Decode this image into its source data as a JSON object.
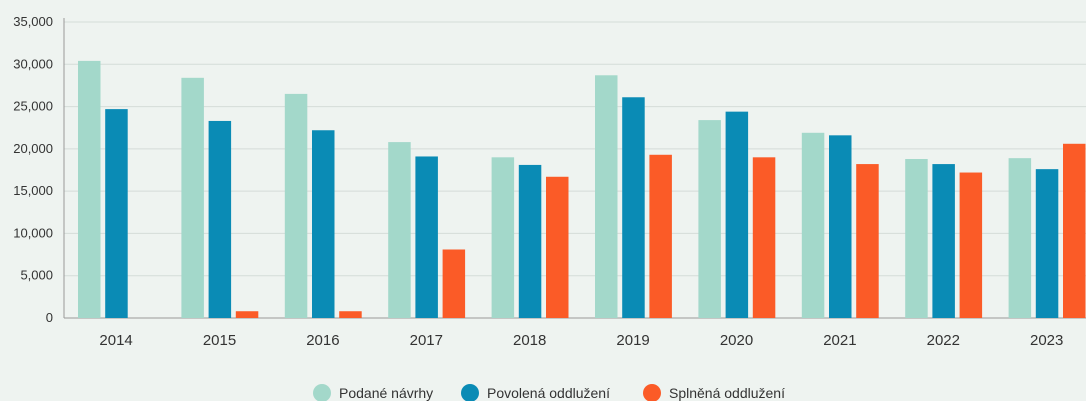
{
  "chart_data": {
    "type": "bar",
    "categories": [
      "2014",
      "2015",
      "2016",
      "2017",
      "2018",
      "2019",
      "2020",
      "2021",
      "2022",
      "2023"
    ],
    "series": [
      {
        "name": "Podané návrhy",
        "color": "#a3d8ca",
        "values": [
          30400,
          28400,
          26500,
          20800,
          19000,
          28700,
          23400,
          21900,
          18800,
          18900
        ]
      },
      {
        "name": "Povolená oddlužení",
        "color": "#0a8bb5",
        "values": [
          24700,
          23300,
          22200,
          19100,
          18100,
          26100,
          24400,
          21600,
          18200,
          17600
        ]
      },
      {
        "name": "Splněná oddlužení",
        "color": "#fb5b27",
        "values": [
          null,
          800,
          800,
          8100,
          16700,
          19300,
          19000,
          18200,
          17200,
          20600
        ]
      }
    ],
    "y_ticks": [
      "0",
      "5,000",
      "10,000",
      "15,000",
      "20,000",
      "25,000",
      "30,000",
      "35,000"
    ],
    "ylim": [
      0,
      35000
    ],
    "grid": true,
    "legend": "bottom-center",
    "title": "",
    "xlabel": "",
    "ylabel": ""
  }
}
